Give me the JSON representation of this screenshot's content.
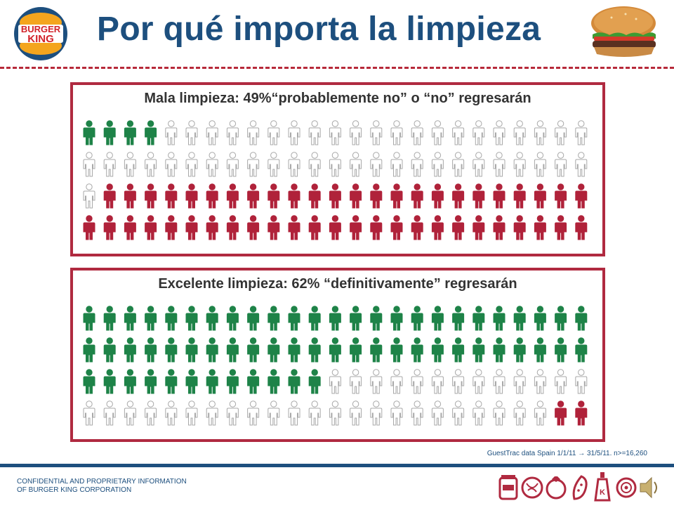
{
  "header": {
    "logo_text_top": "BURGER",
    "logo_text_bottom": "KING",
    "title": "Por qué importa la limpieza"
  },
  "panels": [
    {
      "title": "Mala limpieza: 49%“probablemente no” o “no” regresarán",
      "rows": 4,
      "cols": 25,
      "counts": {
        "green": 4,
        "white": 47,
        "red": 49
      },
      "colors": {
        "green": "#1e8348",
        "white": "#ffffff",
        "red": "#b0223a"
      }
    },
    {
      "title": "Excelente limpieza: 62% “definitivamente” regresarán",
      "rows": 4,
      "cols": 25,
      "counts": {
        "green": 62,
        "white": 36,
        "red": 2
      },
      "colors": {
        "green": "#1e8348",
        "white": "#ffffff",
        "red": "#b0223a"
      }
    }
  ],
  "source": "GuestTrac data Spain 1/1/11 → 31/5/11. n>=16,260",
  "footer": {
    "line1": "CONFIDENTIAL AND PROPRIETARY INFORMATION",
    "line2": "OF BURGER KING CORPORATION"
  },
  "footer_icons": [
    "jar-icon",
    "lettuce-icon",
    "tomato-icon",
    "pickle-icon",
    "ketchup-bottle-icon",
    "onion-icon",
    "speaker-icon"
  ],
  "theme": {
    "navy": "#1d4f7e",
    "crimson": "#b02a40"
  }
}
